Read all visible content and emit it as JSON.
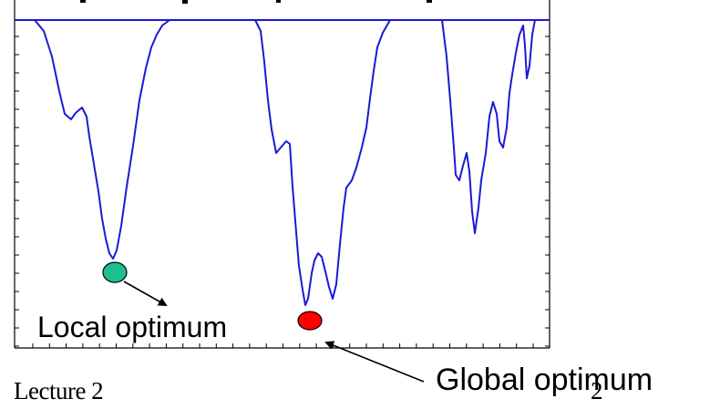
{
  "annotations": {
    "local_label": "Local optimum",
    "global_label": "Global optimum"
  },
  "footer": {
    "lecture": "Lecture 2",
    "page_number": "2"
  },
  "colors": {
    "curve": "#1a1ad6",
    "local_marker": "#1fbf8f",
    "global_marker": "#ff0000",
    "arrow": "#000000",
    "frame": "#000000"
  }
}
